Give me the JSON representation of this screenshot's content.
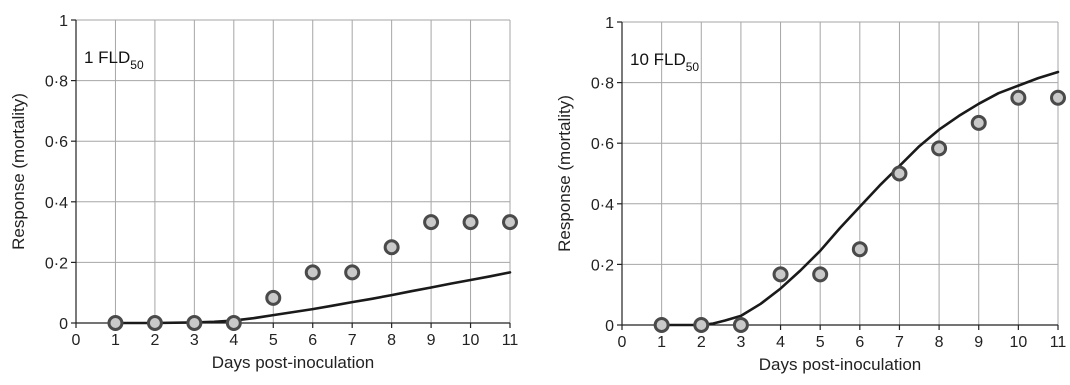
{
  "chart_data": [
    {
      "type": "scatter",
      "annotation": {
        "main": "1 FLD",
        "sub": "50"
      },
      "xlabel": "Days post-inoculation",
      "ylabel": "Response (mortality)",
      "xlim": [
        0,
        11
      ],
      "ylim": [
        0,
        1
      ],
      "x_ticks": [
        "0",
        "1",
        "2",
        "3",
        "4",
        "5",
        "6",
        "7",
        "8",
        "9",
        "10",
        "11"
      ],
      "y_ticks": [
        "0",
        "0·2",
        "0·4",
        "0·6",
        "0·8",
        "1"
      ],
      "grid": true,
      "series": [
        {
          "kind": "points",
          "x": [
            1,
            2,
            3,
            4,
            5,
            6,
            7,
            8,
            9,
            10,
            11
          ],
          "y": [
            0,
            0,
            0,
            0,
            0.083,
            0.167,
            0.167,
            0.25,
            0.333,
            0.333,
            0.333
          ]
        },
        {
          "kind": "line",
          "x": [
            1,
            2,
            3,
            3.5,
            4,
            4.5,
            5,
            5.5,
            6,
            6.5,
            7,
            7.5,
            8,
            8.5,
            9,
            9.5,
            10,
            10.5,
            11
          ],
          "y": [
            0,
            0,
            0.002,
            0.004,
            0.008,
            0.016,
            0.026,
            0.036,
            0.046,
            0.057,
            0.069,
            0.08,
            0.092,
            0.105,
            0.117,
            0.13,
            0.142,
            0.154,
            0.167
          ]
        }
      ]
    },
    {
      "type": "scatter",
      "annotation": {
        "main": "10 FLD",
        "sub": "50"
      },
      "xlabel": "Days post-inoculation",
      "ylabel": "Response (mortality)",
      "xlim": [
        0,
        11
      ],
      "ylim": [
        0,
        1
      ],
      "x_ticks": [
        "0",
        "1",
        "2",
        "3",
        "4",
        "5",
        "6",
        "7",
        "8",
        "9",
        "10",
        "11"
      ],
      "y_ticks": [
        "0",
        "0·2",
        "0·4",
        "0·6",
        "0·8",
        "1"
      ],
      "grid": true,
      "series": [
        {
          "kind": "points",
          "x": [
            1,
            2,
            3,
            4,
            5,
            6,
            7,
            8,
            9,
            10,
            11
          ],
          "y": [
            0,
            0,
            0,
            0.167,
            0.167,
            0.25,
            0.5,
            0.583,
            0.667,
            0.75,
            0.75
          ]
        },
        {
          "kind": "line",
          "x": [
            1,
            2,
            2.3,
            2.6,
            3,
            3.5,
            4,
            4.5,
            5,
            5.5,
            6,
            6.5,
            7,
            7.5,
            8,
            8.5,
            9,
            9.5,
            10,
            10.5,
            11
          ],
          "y": [
            0,
            0,
            0.005,
            0.015,
            0.03,
            0.07,
            0.12,
            0.18,
            0.245,
            0.32,
            0.39,
            0.46,
            0.525,
            0.59,
            0.645,
            0.69,
            0.73,
            0.765,
            0.79,
            0.815,
            0.835
          ]
        }
      ]
    }
  ]
}
